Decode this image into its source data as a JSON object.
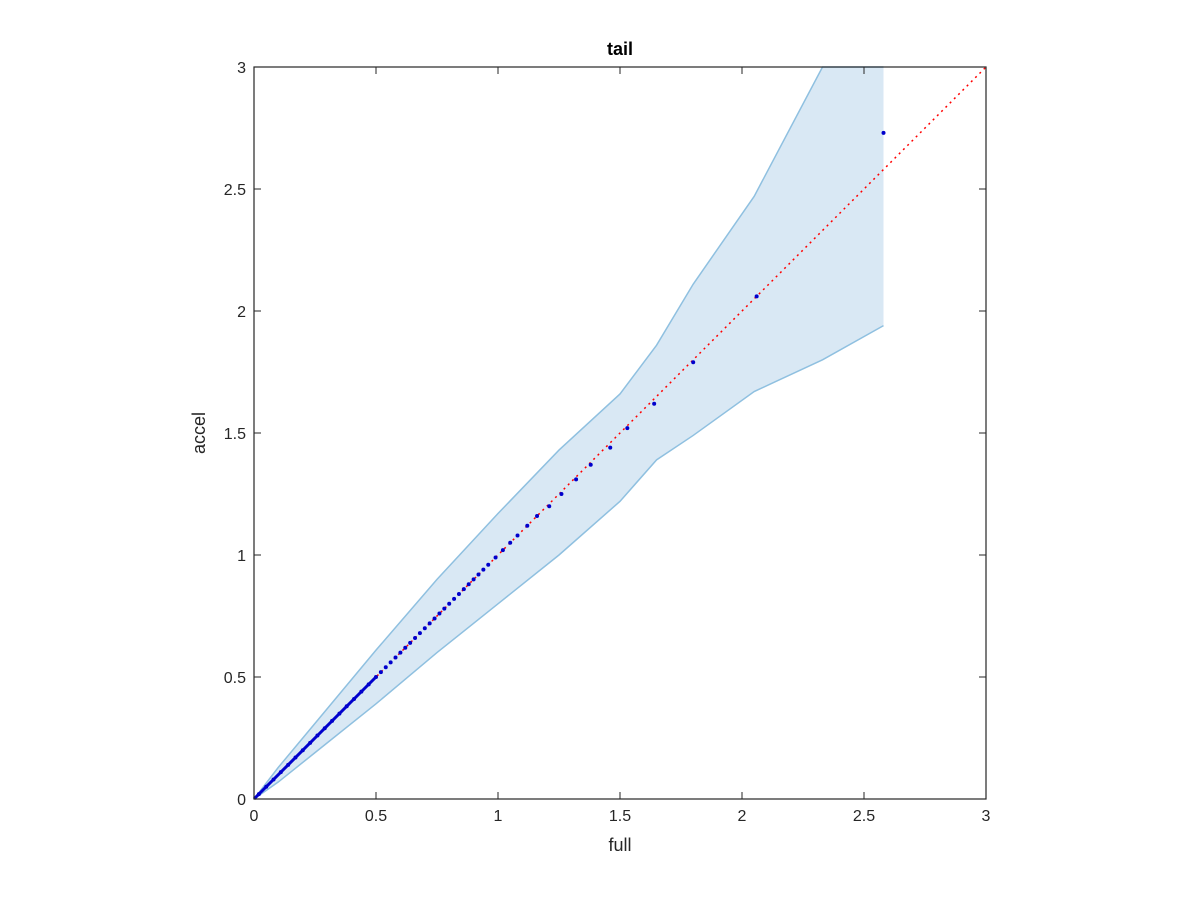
{
  "chart_data": {
    "type": "scatter",
    "title": "tail",
    "xlabel": "full",
    "ylabel": "accel",
    "xlim": [
      0,
      3
    ],
    "ylim": [
      0,
      3
    ],
    "xticks": [
      "0",
      "0.5",
      "1",
      "1.5",
      "2",
      "2.5",
      "3"
    ],
    "yticks": [
      "0",
      "0.5",
      "1",
      "1.5",
      "2",
      "2.5",
      "3"
    ],
    "grid": false,
    "legend": "none",
    "colors": {
      "points": "#0000cc",
      "reference_line": "#ff0000",
      "band_fill": "#d9e8f4",
      "band_edge": "#8fc0e0",
      "axes": "#262626"
    },
    "series": [
      {
        "type": "scatter",
        "x": [
          0.02,
          0.05,
          0.08,
          0.11,
          0.14,
          0.17,
          0.2,
          0.23,
          0.26,
          0.29,
          0.32,
          0.35,
          0.38,
          0.41,
          0.44,
          0.47,
          0.5,
          0.52,
          0.54,
          0.56,
          0.58,
          0.6,
          0.62,
          0.64,
          0.66,
          0.68,
          0.7,
          0.72,
          0.74,
          0.76,
          0.78,
          0.8,
          0.82,
          0.84,
          0.86,
          0.88,
          0.9,
          0.92,
          0.94,
          0.96,
          0.99,
          1.02,
          1.05,
          1.08,
          1.12,
          1.16,
          1.21,
          1.26,
          1.32,
          1.38,
          1.46,
          1.53,
          1.64,
          1.8,
          2.06,
          2.58
        ],
        "y": [
          0.02,
          0.05,
          0.08,
          0.11,
          0.14,
          0.17,
          0.2,
          0.23,
          0.26,
          0.29,
          0.32,
          0.35,
          0.38,
          0.41,
          0.44,
          0.47,
          0.5,
          0.52,
          0.54,
          0.56,
          0.58,
          0.6,
          0.62,
          0.64,
          0.66,
          0.68,
          0.7,
          0.72,
          0.74,
          0.76,
          0.78,
          0.8,
          0.82,
          0.84,
          0.86,
          0.88,
          0.9,
          0.92,
          0.94,
          0.96,
          0.99,
          1.02,
          1.05,
          1.08,
          1.12,
          1.16,
          1.2,
          1.25,
          1.31,
          1.37,
          1.44,
          1.52,
          1.62,
          1.79,
          2.06,
          2.73
        ]
      },
      {
        "type": "line",
        "style": "dotted",
        "x": [
          0,
          3
        ],
        "y": [
          0,
          3
        ]
      },
      {
        "type": "band",
        "x": [
          0,
          0.1,
          0.25,
          0.5,
          0.75,
          1.0,
          1.25,
          1.5,
          1.65,
          1.8,
          2.05,
          2.33,
          2.58
        ],
        "upper": [
          0,
          0.13,
          0.31,
          0.61,
          0.9,
          1.17,
          1.43,
          1.66,
          1.86,
          2.11,
          2.47,
          3.0,
          3.0
        ],
        "lower": [
          0,
          0.07,
          0.19,
          0.39,
          0.6,
          0.8,
          1.0,
          1.22,
          1.39,
          1.49,
          1.67,
          1.8,
          1.94
        ]
      }
    ]
  }
}
